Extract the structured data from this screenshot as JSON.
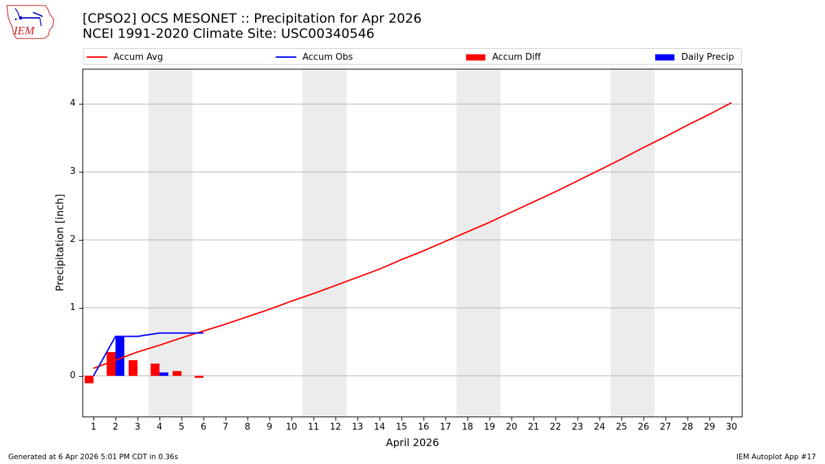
{
  "header": {
    "title_line1": "[CPSO2] OCS MESONET :: Precipitation for Apr 2026",
    "title_line2": "NCEI 1991-2020 Climate Site: USC00340546",
    "logo_text": "IEM"
  },
  "legend": [
    {
      "label": "Accum Avg",
      "kind": "line",
      "color": "#ff0000"
    },
    {
      "label": "Accum Obs",
      "kind": "line",
      "color": "#0000ff"
    },
    {
      "label": "Accum Diff",
      "kind": "patch",
      "color": "#ff0000"
    },
    {
      "label": "Daily Precip",
      "kind": "patch",
      "color": "#0000ff"
    }
  ],
  "footer": {
    "left": "Generated at 6 Apr 2026 5:01 PM CDT in 0.36s",
    "right": "IEM Autoplot App #17"
  },
  "chart_data": {
    "type": "line",
    "title": "[CPSO2] OCS MESONET :: Precipitation for Apr 2026 / NCEI 1991-2020 Climate Site: USC00340546",
    "xlabel": "April 2026",
    "ylabel": "Precipitation [inch]",
    "xlim": [
      0.5,
      30.5
    ],
    "ylim": [
      -0.61,
      4.52
    ],
    "x": [
      1,
      2,
      3,
      4,
      5,
      6,
      7,
      8,
      9,
      10,
      11,
      12,
      13,
      14,
      15,
      16,
      17,
      18,
      19,
      20,
      21,
      22,
      23,
      24,
      25,
      26,
      27,
      28,
      29,
      30
    ],
    "xticks": [
      "1",
      "2",
      "3",
      "4",
      "5",
      "6",
      "7",
      "8",
      "9",
      "10",
      "11",
      "12",
      "13",
      "14",
      "15",
      "16",
      "17",
      "18",
      "19",
      "20",
      "21",
      "22",
      "23",
      "24",
      "25",
      "26",
      "27",
      "28",
      "29",
      "30"
    ],
    "yticks": [
      0,
      1,
      2,
      3,
      4
    ],
    "grid": "y",
    "weekend_shading": [
      [
        3.5,
        5.5
      ],
      [
        10.5,
        12.5
      ],
      [
        17.5,
        19.5
      ],
      [
        24.5,
        26.5
      ]
    ],
    "shading_color": "#ececec",
    "legend_position": "top",
    "series": [
      {
        "name": "Accum Avg",
        "type": "line",
        "color": "#ff0000",
        "x": [
          1,
          2,
          3,
          4,
          5,
          6,
          7,
          8,
          9,
          10,
          11,
          12,
          13,
          14,
          15,
          16,
          17,
          18,
          19,
          20,
          21,
          22,
          23,
          24,
          25,
          26,
          27,
          28,
          29,
          30
        ],
        "values": [
          0.11,
          0.23,
          0.35,
          0.45,
          0.56,
          0.66,
          0.76,
          0.87,
          0.98,
          1.1,
          1.21,
          1.33,
          1.45,
          1.57,
          1.71,
          1.84,
          1.98,
          2.12,
          2.26,
          2.41,
          2.56,
          2.71,
          2.87,
          3.03,
          3.19,
          3.36,
          3.52,
          3.69,
          3.85,
          4.02
        ]
      },
      {
        "name": "Accum Obs",
        "type": "line",
        "color": "#0000ff",
        "x": [
          1,
          2,
          3,
          4,
          5,
          6
        ],
        "values": [
          0.0,
          0.58,
          0.58,
          0.63,
          0.63,
          0.63
        ]
      },
      {
        "name": "Accum Diff",
        "type": "bar",
        "color": "#ff0000",
        "offset": -0.4,
        "width": 0.4,
        "x": [
          1,
          2,
          3,
          4,
          5,
          6
        ],
        "values": [
          -0.11,
          0.35,
          0.23,
          0.18,
          0.07,
          -0.03
        ]
      },
      {
        "name": "Daily Precip",
        "type": "bar",
        "color": "#0000ff",
        "offset": 0.0,
        "width": 0.4,
        "x": [
          1,
          2,
          3,
          4,
          5,
          6
        ],
        "values": [
          0.0,
          0.58,
          0.0,
          0.05,
          0.0,
          0.0
        ]
      }
    ]
  }
}
